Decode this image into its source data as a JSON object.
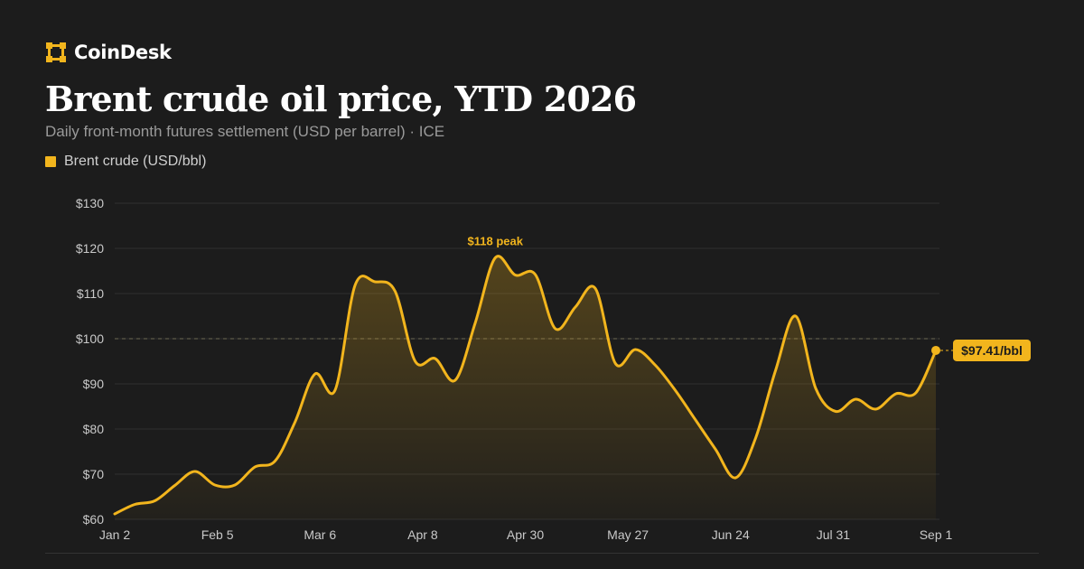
{
  "brand": {
    "name": "CoinDesk",
    "icon": "coindesk-logo-icon",
    "accent": "#f2b51d"
  },
  "header": {
    "title": "Brent crude oil price, YTD 2026",
    "subtitle": "Daily front-month futures settlement (USD per barrel) · ICE"
  },
  "footer": {
    "left": "",
    "right": ""
  },
  "chart_data": {
    "type": "area",
    "title": "Brent crude oil price, YTD 2026",
    "subtitle": "Daily front-month futures settlement (USD per barrel) · ICE",
    "xlabel": "",
    "ylabel": "",
    "ylim": [
      60,
      130
    ],
    "yticks": [
      60,
      70,
      80,
      90,
      100,
      110,
      120,
      130
    ],
    "ytick_labels": [
      "$60",
      "$70",
      "$80",
      "$90",
      "$100",
      "$110",
      "$120",
      "$130"
    ],
    "xtick_labels": [
      "Jan 2",
      "Feb 5",
      "Mar 6",
      "Apr 8",
      "Apr 30",
      "May 27",
      "Jun 24",
      "Jul 31",
      "Sep 1"
    ],
    "grid": true,
    "legend_position": "top-left",
    "reference_line": 100,
    "line_color": "#f2b51d",
    "series": [
      {
        "name": "Brent crude (USD/bbl)",
        "values": [
          61.2,
          63.3,
          64.1,
          67.5,
          70.6,
          67.6,
          67.6,
          71.6,
          72.9,
          81.5,
          92.2,
          88.6,
          111.8,
          112.6,
          110.5,
          95.0,
          95.6,
          90.8,
          103.5,
          117.9,
          114.1,
          114.2,
          102.2,
          107.0,
          111.1,
          94.5,
          97.6,
          94.1,
          88.5,
          82.0,
          75.5,
          69.2,
          78.0,
          93.0,
          105.0,
          89.0,
          83.9,
          86.6,
          84.4,
          87.8,
          88.0,
          97.41
        ]
      }
    ],
    "annotations": [
      {
        "label": "$118 peak",
        "value": 117.9
      },
      {
        "label": "$97.41/bbl",
        "value": 97.41
      }
    ]
  }
}
